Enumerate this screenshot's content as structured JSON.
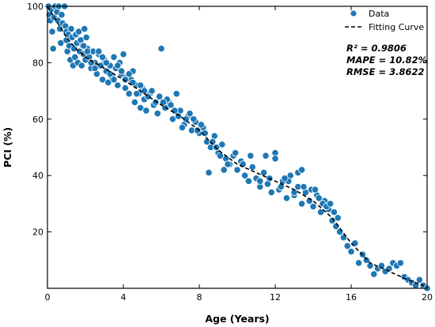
{
  "chart_data": {
    "type": "scatter",
    "xlabel": "Age (Years)",
    "ylabel": "PCI (%)",
    "xlim": [
      0,
      20
    ],
    "ylim": [
      0,
      100
    ],
    "xticks": [
      0,
      4,
      8,
      12,
      16,
      20
    ],
    "yticks": [
      20,
      40,
      60,
      80,
      100
    ],
    "grid": false,
    "legend": {
      "placement": "top-right",
      "entries": [
        "Data",
        "Fitting Curve"
      ]
    },
    "annotations": [
      "R² = 0.9806",
      "MAPE = 10.82%",
      "RMSE = 3.8622"
    ],
    "colors": {
      "data": "#1f77b4",
      "fit": "#000000"
    },
    "series": [
      {
        "name": "Data",
        "kind": "scatter",
        "points": [
          [
            0.05,
            100
          ],
          [
            0.1,
            97
          ],
          [
            0.15,
            95
          ],
          [
            0.2,
            99
          ],
          [
            0.25,
            91
          ],
          [
            0.3,
            85
          ],
          [
            0.35,
            96
          ],
          [
            0.4,
            100
          ],
          [
            0.5,
            98
          ],
          [
            0.55,
            95
          ],
          [
            0.6,
            100
          ],
          [
            0.65,
            92
          ],
          [
            0.7,
            87
          ],
          [
            0.75,
            97
          ],
          [
            0.8,
            94
          ],
          [
            0.9,
            100
          ],
          [
            0.95,
            93
          ],
          [
            1.0,
            91
          ],
          [
            1.0,
            88
          ],
          [
            1.05,
            84
          ],
          [
            1.1,
            90
          ],
          [
            1.15,
            86
          ],
          [
            1.2,
            81
          ],
          [
            1.25,
            92
          ],
          [
            1.3,
            89
          ],
          [
            1.35,
            79
          ],
          [
            1.4,
            85
          ],
          [
            1.45,
            82
          ],
          [
            1.5,
            90
          ],
          [
            1.55,
            87
          ],
          [
            1.6,
            80
          ],
          [
            1.65,
            91
          ],
          [
            1.7,
            84
          ],
          [
            1.75,
            88
          ],
          [
            1.8,
            79
          ],
          [
            1.85,
            86
          ],
          [
            1.9,
            83
          ],
          [
            1.95,
            92
          ],
          [
            2.0,
            81
          ],
          [
            2.05,
            89
          ],
          [
            2.1,
            85
          ],
          [
            2.2,
            82
          ],
          [
            2.3,
            78
          ],
          [
            2.4,
            84
          ],
          [
            2.5,
            80
          ],
          [
            2.6,
            76
          ],
          [
            2.7,
            83
          ],
          [
            2.8,
            79
          ],
          [
            2.9,
            74
          ],
          [
            3.0,
            81
          ],
          [
            3.1,
            77
          ],
          [
            3.2,
            73
          ],
          [
            3.3,
            79
          ],
          [
            3.4,
            75
          ],
          [
            3.5,
            82
          ],
          [
            3.6,
            78
          ],
          [
            3.7,
            72
          ],
          [
            3.8,
            80
          ],
          [
            3.9,
            76
          ],
          [
            4.0,
            83
          ],
          [
            4.1,
            71
          ],
          [
            4.2,
            75
          ],
          [
            4.3,
            69
          ],
          [
            4.4,
            74
          ],
          [
            4.5,
            77
          ],
          [
            4.6,
            66
          ],
          [
            4.7,
            72
          ],
          [
            4.8,
            69
          ],
          [
            4.9,
            64
          ],
          [
            5.0,
            71
          ],
          [
            5.1,
            67
          ],
          [
            5.2,
            63
          ],
          [
            5.4,
            69
          ],
          [
            5.6,
            65
          ],
          [
            5.8,
            62
          ],
          [
            6.0,
            85
          ],
          [
            6.2,
            64
          ],
          [
            6.4,
            66
          ],
          [
            6.6,
            60
          ],
          [
            6.8,
            69
          ],
          [
            7.0,
            63
          ],
          [
            7.2,
            58
          ],
          [
            7.4,
            61
          ],
          [
            7.6,
            56
          ],
          [
            7.8,
            59
          ],
          [
            8.0,
            55
          ],
          [
            8.2,
            57
          ],
          [
            8.4,
            52
          ],
          [
            8.5,
            41
          ],
          [
            8.6,
            50
          ],
          [
            8.8,
            54
          ],
          [
            9.0,
            48
          ],
          [
            9.2,
            51
          ],
          [
            9.4,
            46
          ],
          [
            9.6,
            44
          ],
          [
            9.8,
            47
          ],
          [
            10.0,
            42
          ],
          [
            10.2,
            45
          ],
          [
            10.4,
            40
          ],
          [
            10.6,
            38
          ],
          [
            10.8,
            43
          ],
          [
            11.0,
            39
          ],
          [
            11.2,
            36
          ],
          [
            11.4,
            41
          ],
          [
            11.6,
            37
          ],
          [
            11.8,
            34
          ],
          [
            12.0,
            48
          ],
          [
            12.2,
            35
          ],
          [
            12.4,
            38
          ],
          [
            12.6,
            32
          ],
          [
            12.8,
            40
          ],
          [
            13.0,
            33
          ],
          [
            13.2,
            36
          ],
          [
            13.4,
            30
          ],
          [
            13.6,
            34
          ],
          [
            13.8,
            31
          ],
          [
            14.0,
            29
          ],
          [
            14.2,
            33
          ],
          [
            14.4,
            27
          ],
          [
            14.6,
            31
          ],
          [
            14.8,
            28
          ],
          [
            15.0,
            24
          ],
          [
            15.2,
            22
          ],
          [
            15.4,
            20
          ],
          [
            15.6,
            18
          ],
          [
            15.8,
            15
          ],
          [
            16.0,
            13
          ],
          [
            16.2,
            16
          ],
          [
            16.4,
            9
          ],
          [
            16.6,
            12
          ],
          [
            16.8,
            10
          ],
          [
            17.0,
            8
          ],
          [
            17.2,
            5
          ],
          [
            17.4,
            7
          ],
          [
            17.6,
            8
          ],
          [
            17.8,
            6
          ],
          [
            18.0,
            7
          ],
          [
            18.2,
            9
          ],
          [
            18.4,
            8
          ],
          [
            18.6,
            9
          ],
          [
            18.8,
            4
          ],
          [
            19.0,
            3
          ],
          [
            19.2,
            2
          ],
          [
            19.4,
            1
          ],
          [
            19.6,
            3
          ],
          [
            19.8,
            1
          ],
          [
            20.0,
            0
          ],
          [
            11.7,
            39
          ],
          [
            11.5,
            47
          ],
          [
            12.0,
            46
          ],
          [
            12.3,
            36
          ],
          [
            12.7,
            38
          ],
          [
            13.2,
            41
          ],
          [
            13.0,
            34
          ],
          [
            13.5,
            36
          ],
          [
            13.9,
            35
          ],
          [
            14.1,
            35
          ],
          [
            14.3,
            32
          ],
          [
            14.5,
            30
          ],
          [
            14.7,
            29
          ],
          [
            14.9,
            30
          ],
          [
            15.1,
            27
          ],
          [
            15.3,
            25
          ],
          [
            13.4,
            42
          ],
          [
            12.5,
            39
          ],
          [
            11.2,
            38
          ],
          [
            10.7,
            47
          ],
          [
            10.3,
            44
          ],
          [
            9.9,
            48
          ],
          [
            9.5,
            44
          ],
          [
            9.3,
            42
          ],
          [
            9.1,
            47
          ],
          [
            8.9,
            50
          ],
          [
            8.7,
            52
          ],
          [
            8.3,
            55
          ],
          [
            8.1,
            58
          ],
          [
            7.9,
            56
          ],
          [
            7.7,
            60
          ],
          [
            7.5,
            62
          ],
          [
            7.3,
            60
          ],
          [
            7.1,
            57
          ],
          [
            6.9,
            61
          ],
          [
            6.7,
            63
          ],
          [
            6.5,
            65
          ],
          [
            6.3,
            67
          ],
          [
            6.1,
            66
          ],
          [
            5.9,
            68
          ],
          [
            5.7,
            66
          ],
          [
            5.5,
            70
          ],
          [
            5.3,
            68
          ],
          [
            5.1,
            70
          ],
          [
            4.9,
            72
          ],
          [
            4.7,
            69
          ],
          [
            4.5,
            73
          ],
          [
            4.3,
            76
          ],
          [
            4.1,
            74
          ],
          [
            3.9,
            77
          ],
          [
            3.7,
            79
          ],
          [
            3.5,
            74
          ],
          [
            3.3,
            76
          ],
          [
            3.1,
            80
          ],
          [
            2.9,
            82
          ],
          [
            2.7,
            84
          ],
          [
            2.5,
            78
          ],
          [
            2.3,
            80
          ],
          [
            2.1,
            84
          ],
          [
            1.9,
            86
          ]
        ]
      },
      {
        "name": "Fitting Curve",
        "kind": "line",
        "points": [
          [
            0,
            100
          ],
          [
            0.5,
            94.5
          ],
          [
            1,
            89
          ],
          [
            1.5,
            85
          ],
          [
            2,
            82
          ],
          [
            3,
            78
          ],
          [
            4,
            74
          ],
          [
            5,
            69.5
          ],
          [
            6,
            65
          ],
          [
            7,
            61
          ],
          [
            8,
            56
          ],
          [
            9,
            49
          ],
          [
            10,
            44
          ],
          [
            11,
            41
          ],
          [
            12,
            38
          ],
          [
            13,
            35
          ],
          [
            14,
            31
          ],
          [
            15,
            25
          ],
          [
            16,
            16
          ],
          [
            17,
            9
          ],
          [
            18,
            6
          ],
          [
            19,
            3
          ],
          [
            20,
            0.5
          ]
        ]
      }
    ]
  }
}
